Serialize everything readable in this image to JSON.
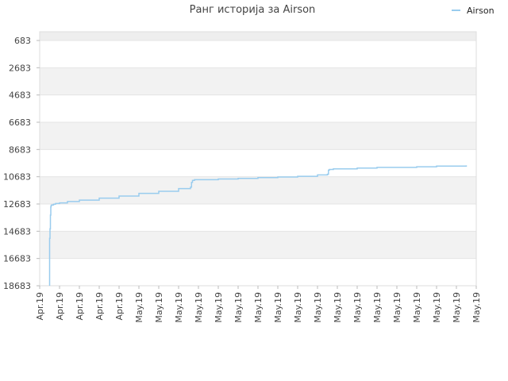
{
  "chart_data": {
    "type": "line",
    "title": "Ранг историја за Airson",
    "xlabel": "",
    "ylabel": "",
    "y_inverted": true,
    "ylim": [
      683,
      18683
    ],
    "y_ticks": [
      "683",
      "2683",
      "4683",
      "6683",
      "8683",
      "10683",
      "12683",
      "14683",
      "16683",
      "18683"
    ],
    "x_ticks": [
      "Apr.19",
      "Apr.19",
      "Apr.19",
      "Apr.19",
      "Apr.19",
      "May.19",
      "May.19",
      "May.19",
      "May.19",
      "May.19",
      "May.19",
      "May.19",
      "May.19",
      "May.19",
      "May.19",
      "May.19",
      "May.19",
      "May.19",
      "May.19",
      "May.19",
      "May.19",
      "May.19",
      "May.19"
    ],
    "grid": true,
    "legend": "top-right",
    "series": [
      {
        "name": "Airson",
        "color": "#99ccee",
        "x_index": [
          0.5,
          0.5,
          0.52,
          0.54,
          0.56,
          0.57,
          0.58,
          0.6,
          0.65,
          0.7,
          0.8,
          1.0,
          1.4,
          2.0,
          3.0,
          4.0,
          5.0,
          6.0,
          7.0,
          7.6,
          7.65,
          7.7,
          7.8,
          8.0,
          9.0,
          10.0,
          11.0,
          12.0,
          13.0,
          14.0,
          14.5,
          14.55,
          14.6,
          14.8,
          15.0,
          16.0,
          17.0,
          18.0,
          19.0,
          20.0,
          21.0,
          21.5
        ],
        "values": [
          18683,
          15200,
          14500,
          13500,
          12900,
          12800,
          12800,
          12750,
          12750,
          12700,
          12650,
          12600,
          12500,
          12400,
          12250,
          12100,
          11900,
          11750,
          11550,
          11450,
          11100,
          10950,
          10900,
          10900,
          10850,
          10800,
          10750,
          10700,
          10650,
          10550,
          10500,
          10200,
          10150,
          10100,
          10100,
          10050,
          10000,
          10000,
          9950,
          9900,
          9900,
          9850
        ]
      }
    ]
  }
}
